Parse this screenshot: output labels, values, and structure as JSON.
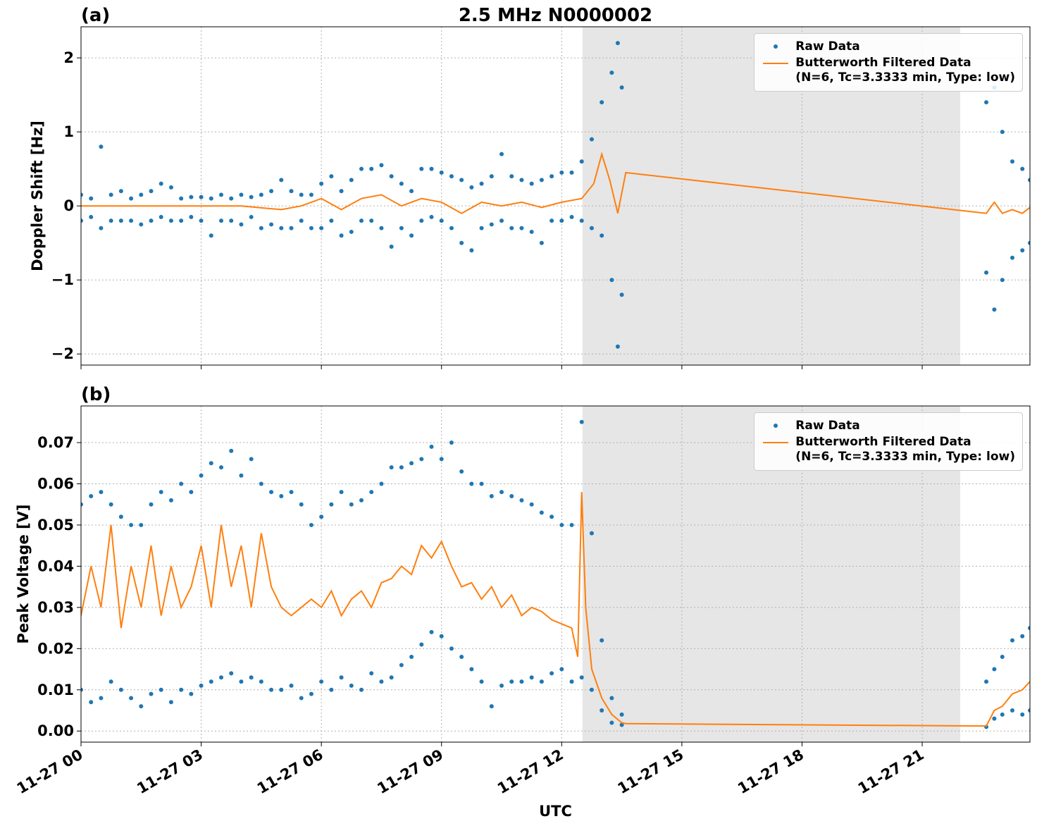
{
  "chart_data": [
    {
      "type": "scatter_line",
      "title": "2.5 MHz N0000002",
      "panel_label": "(a)",
      "ylabel": "Doppler Shift [Hz]",
      "xlim": [
        0,
        23.69
      ],
      "xticks": [
        0,
        3,
        6,
        9,
        12,
        15,
        18,
        21
      ],
      "ylim": [
        -2.15,
        2.42
      ],
      "yticks": [
        {
          "value": -2,
          "label": "−2"
        },
        {
          "value": -1,
          "label": "−1"
        },
        0,
        1,
        2
      ],
      "grid": true,
      "shade": [
        12.52,
        21.95
      ],
      "legend": "upper right",
      "series": [
        {
          "name": "Raw Data",
          "kind": "scatter",
          "color": "#1f77b4",
          "x": [
            0,
            0,
            0.25,
            0.25,
            0.5,
            0.5,
            0.75,
            0.75,
            1,
            1,
            1.25,
            1.25,
            1.5,
            1.5,
            1.75,
            1.75,
            2,
            2,
            2.25,
            2.25,
            2.5,
            2.5,
            2.75,
            2.75,
            3,
            3,
            3.25,
            3.25,
            3.5,
            3.5,
            3.75,
            3.75,
            4,
            4,
            4.25,
            4.25,
            4.5,
            4.5,
            4.75,
            4.75,
            5,
            5,
            5.25,
            5.25,
            5.5,
            5.5,
            5.75,
            5.75,
            6,
            6,
            6.25,
            6.25,
            6.5,
            6.5,
            6.75,
            6.75,
            7,
            7,
            7.25,
            7.25,
            7.5,
            7.5,
            7.75,
            7.75,
            8,
            8,
            8.25,
            8.25,
            8.5,
            8.5,
            8.75,
            8.75,
            9,
            9,
            9.25,
            9.25,
            9.5,
            9.5,
            9.75,
            9.75,
            10,
            10,
            10.25,
            10.25,
            10.5,
            10.5,
            10.75,
            10.75,
            11,
            11,
            11.25,
            11.25,
            11.5,
            11.5,
            11.75,
            11.75,
            12,
            12,
            12.25,
            12.25,
            12.5,
            12.5,
            12.75,
            12.75,
            13,
            13,
            13.25,
            13.25,
            13.4,
            13.4,
            13.5,
            13.5,
            22.6,
            22.6,
            22.8,
            22.8,
            23,
            23,
            23.25,
            23.25,
            23.5,
            23.5,
            23.69,
            23.69
          ],
          "values": [
            0.15,
            -0.2,
            0.1,
            -0.15,
            0.8,
            -0.3,
            0.15,
            -0.2,
            0.2,
            -0.2,
            0.1,
            -0.2,
            0.15,
            -0.25,
            0.2,
            -0.2,
            0.3,
            -0.15,
            0.25,
            -0.2,
            0.1,
            -0.2,
            0.12,
            -0.15,
            0.12,
            -0.2,
            0.1,
            -0.4,
            0.15,
            -0.2,
            0.1,
            -0.2,
            0.15,
            -0.25,
            0.12,
            -0.15,
            0.15,
            -0.3,
            0.2,
            -0.25,
            0.35,
            -0.3,
            0.2,
            -0.3,
            0.15,
            -0.2,
            0.15,
            -0.3,
            0.3,
            -0.3,
            0.4,
            -0.2,
            0.2,
            -0.4,
            0.35,
            -0.35,
            0.5,
            -0.2,
            0.5,
            -0.2,
            0.55,
            -0.3,
            0.4,
            -0.55,
            0.3,
            -0.3,
            0.2,
            -0.4,
            0.5,
            -0.2,
            0.5,
            -0.15,
            0.45,
            -0.2,
            0.4,
            -0.3,
            0.35,
            -0.5,
            0.25,
            -0.6,
            0.3,
            -0.3,
            0.4,
            -0.25,
            0.7,
            -0.2,
            0.4,
            -0.3,
            0.35,
            -0.3,
            0.3,
            -0.35,
            0.35,
            -0.5,
            0.4,
            -0.2,
            0.45,
            -0.2,
            0.45,
            -0.15,
            0.6,
            -0.2,
            0.9,
            -0.3,
            1.4,
            -0.4,
            1.8,
            -1.0,
            2.2,
            -1.9,
            1.6,
            -1.2,
            1.4,
            -0.9,
            1.6,
            -1.4,
            1.0,
            -1.0,
            0.6,
            -0.7,
            0.5,
            -0.6,
            0.35,
            -0.5
          ]
        },
        {
          "name": "Butterworth Filtered Data\n(N=6, Tc=3.3333 min, Type: low)",
          "kind": "line",
          "color": "#ff7f0e",
          "x": [
            0,
            1,
            2,
            3,
            4,
            5,
            5.5,
            6,
            6.5,
            7,
            7.5,
            8,
            8.5,
            9,
            9.5,
            10,
            10.5,
            11,
            11.5,
            12,
            12.5,
            12.8,
            13,
            13.2,
            13.4,
            13.6,
            22.6,
            22.8,
            23,
            23.25,
            23.5,
            23.69
          ],
          "values": [
            0,
            0,
            0,
            0,
            0,
            -0.05,
            0,
            0.1,
            -0.05,
            0.1,
            0.15,
            0,
            0.1,
            0.05,
            -0.1,
            0.05,
            0,
            0.05,
            -0.02,
            0.05,
            0.1,
            0.3,
            0.7,
            0.35,
            -0.1,
            0.45,
            -0.1,
            0.05,
            -0.1,
            -0.05,
            -0.1,
            -0.02
          ]
        }
      ]
    },
    {
      "type": "scatter_line",
      "panel_label": "(b)",
      "ylabel": "Peak Voltage [V]",
      "xlabel": "UTC",
      "xlim": [
        0,
        23.69
      ],
      "xticks": [
        {
          "value": 0,
          "label": "11-27 00"
        },
        {
          "value": 3,
          "label": "11-27 03"
        },
        {
          "value": 6,
          "label": "11-27 06"
        },
        {
          "value": 9,
          "label": "11-27 09"
        },
        {
          "value": 12,
          "label": "11-27 12"
        },
        {
          "value": 15,
          "label": "11-27 15"
        },
        {
          "value": 18,
          "label": "11-27 18"
        },
        {
          "value": 21,
          "label": "11-27 21"
        }
      ],
      "ylim": [
        -0.0027,
        0.0789
      ],
      "yticks": [
        {
          "value": 0,
          "label": "0.00"
        },
        0.01,
        0.02,
        0.03,
        0.04,
        0.05,
        0.06,
        0.07
      ],
      "grid": true,
      "shade": [
        12.52,
        21.95
      ],
      "legend": "upper right",
      "series": [
        {
          "name": "Raw Data",
          "kind": "scatter",
          "color": "#1f77b4",
          "x": [
            0,
            0,
            0.25,
            0.25,
            0.5,
            0.5,
            0.75,
            0.75,
            1,
            1,
            1.25,
            1.25,
            1.5,
            1.5,
            1.75,
            1.75,
            2,
            2,
            2.25,
            2.25,
            2.5,
            2.5,
            2.75,
            2.75,
            3,
            3,
            3.25,
            3.25,
            3.5,
            3.5,
            3.75,
            3.75,
            4,
            4,
            4.25,
            4.25,
            4.5,
            4.5,
            4.75,
            4.75,
            5,
            5,
            5.25,
            5.25,
            5.5,
            5.5,
            5.75,
            5.75,
            6,
            6,
            6.25,
            6.25,
            6.5,
            6.5,
            6.75,
            6.75,
            7,
            7,
            7.25,
            7.25,
            7.5,
            7.5,
            7.75,
            7.75,
            8,
            8,
            8.25,
            8.25,
            8.5,
            8.5,
            8.75,
            8.75,
            9,
            9,
            9.25,
            9.25,
            9.5,
            9.5,
            9.75,
            9.75,
            10,
            10,
            10.25,
            10.25,
            10.5,
            10.5,
            10.75,
            10.75,
            11,
            11,
            11.25,
            11.25,
            11.5,
            11.5,
            11.75,
            11.75,
            12,
            12,
            12.25,
            12.25,
            12.5,
            12.5,
            12.75,
            12.75,
            13,
            13,
            13.25,
            13.25,
            13.5,
            13.5,
            22.6,
            22.6,
            22.8,
            22.8,
            23,
            23,
            23.25,
            23.25,
            23.5,
            23.5,
            23.69,
            23.69
          ],
          "values": [
            0.055,
            0.01,
            0.057,
            0.007,
            0.058,
            0.008,
            0.055,
            0.012,
            0.052,
            0.01,
            0.05,
            0.008,
            0.05,
            0.006,
            0.055,
            0.009,
            0.058,
            0.01,
            0.056,
            0.007,
            0.06,
            0.01,
            0.058,
            0.009,
            0.062,
            0.011,
            0.065,
            0.012,
            0.064,
            0.013,
            0.068,
            0.014,
            0.062,
            0.012,
            0.066,
            0.013,
            0.06,
            0.012,
            0.058,
            0.01,
            0.057,
            0.01,
            0.058,
            0.011,
            0.055,
            0.008,
            0.05,
            0.009,
            0.052,
            0.012,
            0.055,
            0.01,
            0.058,
            0.013,
            0.055,
            0.011,
            0.056,
            0.01,
            0.058,
            0.014,
            0.06,
            0.012,
            0.064,
            0.013,
            0.064,
            0.016,
            0.065,
            0.018,
            0.066,
            0.021,
            0.069,
            0.024,
            0.066,
            0.023,
            0.07,
            0.02,
            0.063,
            0.018,
            0.06,
            0.015,
            0.06,
            0.012,
            0.057,
            0.006,
            0.058,
            0.011,
            0.057,
            0.012,
            0.056,
            0.012,
            0.055,
            0.013,
            0.053,
            0.012,
            0.052,
            0.014,
            0.05,
            0.015,
            0.05,
            0.012,
            0.075,
            0.013,
            0.048,
            0.01,
            0.022,
            0.005,
            0.008,
            0.002,
            0.004,
            0.0015,
            0.012,
            0.001,
            0.015,
            0.003,
            0.018,
            0.004,
            0.022,
            0.005,
            0.023,
            0.004,
            0.025,
            0.005
          ]
        },
        {
          "name": "Butterworth Filtered Data\n(N=6, Tc=3.3333 min, Type: low)",
          "kind": "line",
          "color": "#ff7f0e",
          "x": [
            0,
            0.25,
            0.5,
            0.75,
            1,
            1.25,
            1.5,
            1.75,
            2,
            2.25,
            2.5,
            2.75,
            3,
            3.25,
            3.5,
            3.75,
            4,
            4.25,
            4.5,
            4.75,
            5,
            5.25,
            5.5,
            5.75,
            6,
            6.25,
            6.5,
            6.75,
            7,
            7.25,
            7.5,
            7.75,
            8,
            8.25,
            8.5,
            8.75,
            9,
            9.25,
            9.5,
            9.75,
            10,
            10.25,
            10.5,
            10.75,
            11,
            11.25,
            11.5,
            11.75,
            12,
            12.25,
            12.4,
            12.5,
            12.6,
            12.75,
            13,
            13.25,
            13.5,
            13.6,
            22.6,
            22.8,
            23,
            23.25,
            23.5,
            23.69
          ],
          "values": [
            0.028,
            0.04,
            0.03,
            0.05,
            0.025,
            0.04,
            0.03,
            0.045,
            0.028,
            0.04,
            0.03,
            0.035,
            0.045,
            0.03,
            0.05,
            0.035,
            0.045,
            0.03,
            0.048,
            0.035,
            0.03,
            0.028,
            0.03,
            0.032,
            0.03,
            0.034,
            0.028,
            0.032,
            0.034,
            0.03,
            0.036,
            0.037,
            0.04,
            0.038,
            0.045,
            0.042,
            0.046,
            0.04,
            0.035,
            0.036,
            0.032,
            0.035,
            0.03,
            0.033,
            0.028,
            0.03,
            0.029,
            0.027,
            0.026,
            0.025,
            0.018,
            0.058,
            0.03,
            0.015,
            0.008,
            0.004,
            0.002,
            0.0018,
            0.0012,
            0.005,
            0.006,
            0.009,
            0.01,
            0.012
          ]
        }
      ]
    }
  ]
}
